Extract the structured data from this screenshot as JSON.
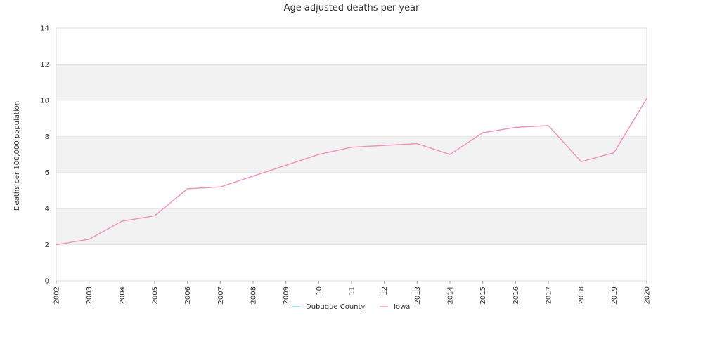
{
  "chart_data": {
    "type": "line",
    "title": "Age adjusted deaths per year",
    "xlabel": "",
    "ylabel": "Deaths per 100,000 population",
    "x": [
      "2002",
      "2003",
      "2004",
      "2005",
      "2006",
      "2007",
      "2008",
      "2009",
      "2010",
      "2011",
      "2012",
      "2013",
      "2014",
      "2015",
      "2016",
      "2017",
      "2018",
      "2019",
      "2020"
    ],
    "x_tick_labels": [
      "2002",
      "2003",
      "2004",
      "2005",
      "2006",
      "2007",
      "2008",
      "2009",
      "10",
      "11",
      "12",
      "2013",
      "2014",
      "2015",
      "2016",
      "2017",
      "2018",
      "2019",
      "2020"
    ],
    "ylim": [
      0,
      14
    ],
    "yticks": [
      0,
      2,
      4,
      6,
      8,
      10,
      12,
      14
    ],
    "grid": true,
    "legend_position": "bottom",
    "series": [
      {
        "name": "Dubuque County",
        "color": "#8ecae6",
        "values": [
          null,
          null,
          null,
          null,
          null,
          null,
          null,
          null,
          null,
          null,
          null,
          null,
          null,
          null,
          null,
          null,
          null,
          null,
          null
        ]
      },
      {
        "name": "Iowa",
        "color": "#f095bf",
        "values": [
          2.0,
          2.3,
          3.3,
          3.6,
          5.1,
          5.2,
          5.8,
          6.4,
          7.0,
          7.4,
          7.5,
          7.6,
          7.0,
          8.2,
          8.5,
          8.6,
          6.6,
          7.1,
          10.1
        ]
      }
    ]
  }
}
